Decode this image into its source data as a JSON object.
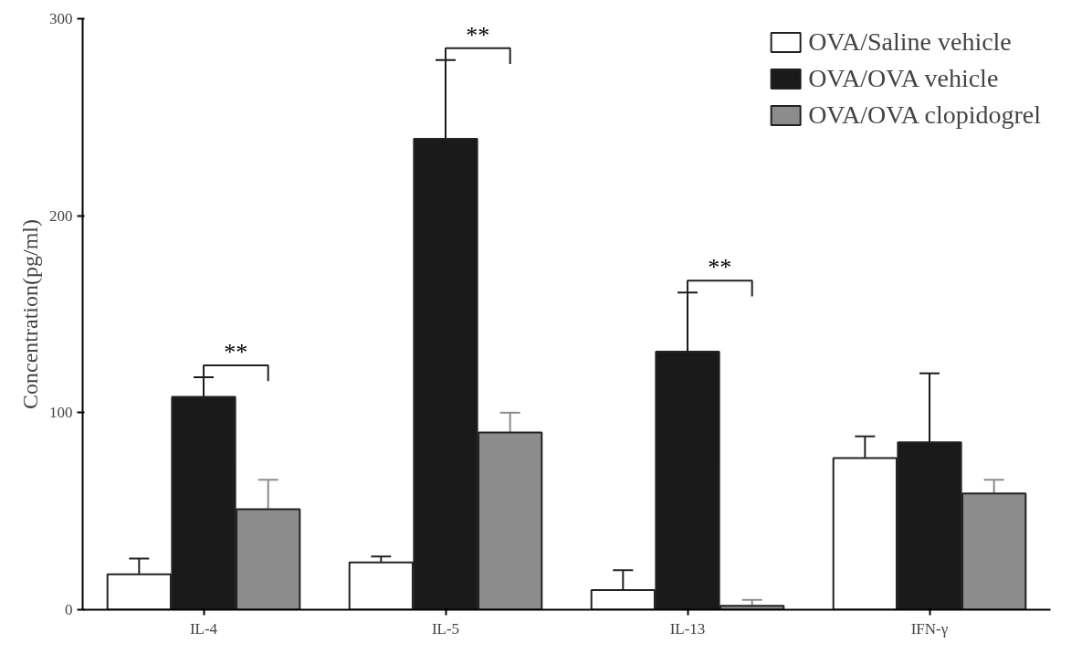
{
  "chart_data": {
    "type": "bar",
    "ylabel": "Concentration(pg/ml)",
    "categories": [
      "IL-4",
      "IL-5",
      "IL-13",
      "IFN-γ"
    ],
    "series": [
      {
        "name": "OVA/Saline vehicle",
        "color": "#ffffff",
        "values": [
          18,
          24,
          10,
          77
        ],
        "errors": [
          [
            18,
            26
          ],
          [
            24,
            27
          ],
          [
            10,
            20
          ],
          [
            77,
            88
          ]
        ]
      },
      {
        "name": "OVA/OVA vehicle",
        "color": "#1a1a1a",
        "values": [
          108,
          239,
          131,
          85
        ],
        "errors": [
          [
            108,
            118
          ],
          [
            239,
            279
          ],
          [
            131,
            161
          ],
          [
            85,
            120
          ]
        ]
      },
      {
        "name": "OVA/OVA clopidogrel",
        "color": "#8c8c8c",
        "values": [
          51,
          90,
          2,
          59
        ],
        "errors": [
          [
            51,
            66
          ],
          [
            90,
            100
          ],
          [
            2,
            5
          ],
          [
            59,
            66
          ]
        ]
      }
    ],
    "ylim": [
      0,
      300
    ],
    "yticks": [
      0,
      100,
      200,
      300
    ],
    "grid": false,
    "legend": "top right",
    "annotations": [
      "**",
      "**",
      "**"
    ]
  }
}
